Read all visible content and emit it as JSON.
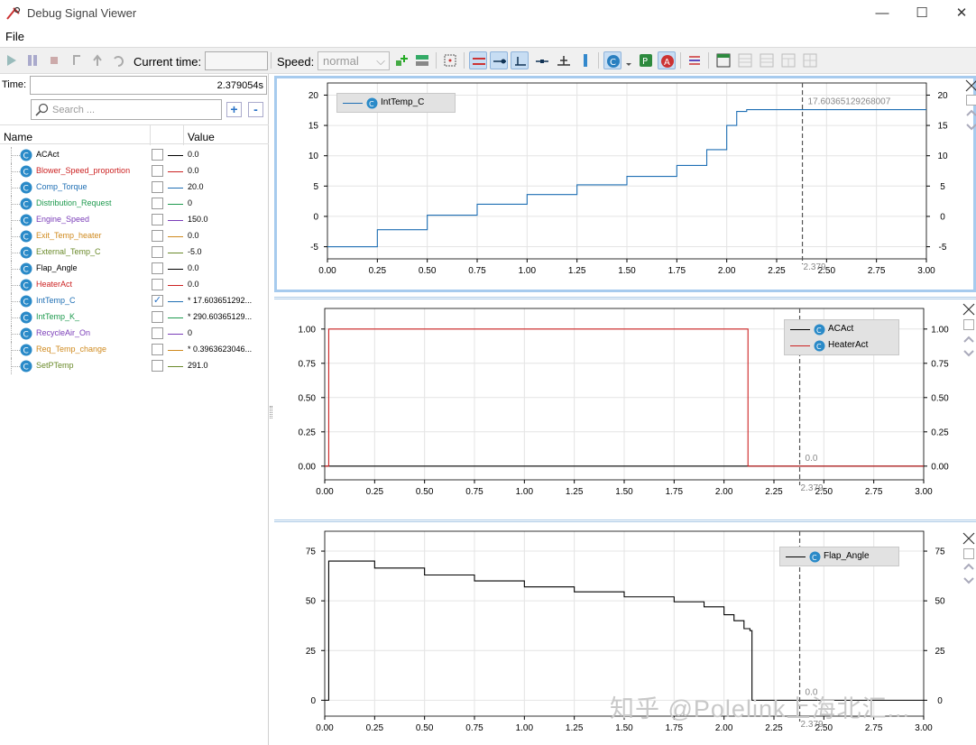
{
  "window": {
    "title": "Debug Signal Viewer",
    "minimize": "—",
    "maximize": "☐",
    "close": "✕"
  },
  "menu": {
    "file": "File"
  },
  "toolbar": {
    "current_time_label": "Current time:",
    "current_time_value": "",
    "speed_label": "Speed:",
    "speed_value": "normal"
  },
  "panel": {
    "time_label": "Time:",
    "time_value": "2.379054s",
    "search_placeholder": "Search ...",
    "add": "+",
    "remove": "-",
    "col_name": "Name",
    "col_value": "Value",
    "signals": [
      {
        "name": "ACAct",
        "value": "0.0",
        "color": "#000000",
        "checked": ""
      },
      {
        "name": "Blower_Speed_proportion",
        "value": "0.0",
        "color": "#cc2222",
        "checked": ""
      },
      {
        "name": "Comp_Torque",
        "value": "20.0",
        "color": "#1f6fb4",
        "checked": ""
      },
      {
        "name": "Distribution_Request",
        "value": "0",
        "color": "#1e9a4e",
        "checked": ""
      },
      {
        "name": "Engine_Speed",
        "value": "150.0",
        "color": "#7a3db8",
        "checked": ""
      },
      {
        "name": "Exit_Temp_heater",
        "value": "0.0",
        "color": "#d08a1e",
        "checked": ""
      },
      {
        "name": "External_Temp_C",
        "value": "-5.0",
        "color": "#6a8a2a",
        "checked": ""
      },
      {
        "name": "Flap_Angle",
        "value": "0.0",
        "color": "#000000",
        "checked": ""
      },
      {
        "name": "HeaterAct",
        "value": "0.0",
        "color": "#cc2222",
        "checked": ""
      },
      {
        "name": "IntTemp_C",
        "value": "* 17.603651292...",
        "color": "#1f6fb4",
        "checked": "✓"
      },
      {
        "name": "IntTemp_K_",
        "value": "* 290.60365129...",
        "color": "#1e9a4e",
        "checked": ""
      },
      {
        "name": "RecycleAir_On",
        "value": "0",
        "color": "#7a3db8",
        "checked": ""
      },
      {
        "name": "Req_Temp_change",
        "value": "* 0.3963623046...",
        "color": "#d08a1e",
        "checked": ""
      },
      {
        "name": "SetPTemp",
        "value": "291.0",
        "color": "#6a8a2a",
        "checked": ""
      }
    ]
  },
  "plots": {
    "cursor_time": 2.379,
    "cursor_label": "2.379",
    "x_ticks": [
      "0.00",
      "0.25",
      "0.50",
      "0.75",
      "1.00",
      "1.25",
      "1.50",
      "1.75",
      "2.00",
      "2.25",
      "2.50",
      "2.75",
      "3.00"
    ],
    "p1": {
      "legend": [
        "IntTemp_C"
      ],
      "cursor_value": "17.60365129268007",
      "y_ticks": [
        "20",
        "15",
        "10",
        "5",
        "0",
        "-5"
      ]
    },
    "p2": {
      "legend": [
        "ACAct",
        "HeaterAct"
      ],
      "cursor_value": "0.0",
      "y_ticks": [
        "1.00",
        "0.75",
        "0.50",
        "0.25",
        "0.00"
      ]
    },
    "p3": {
      "legend": [
        "Flap_Angle"
      ],
      "cursor_value": "0.0",
      "y_ticks": [
        "75",
        "50",
        "25",
        "0"
      ]
    }
  },
  "chart_data": [
    {
      "type": "line",
      "x": [
        0.0,
        0.25,
        0.5,
        0.75,
        1.0,
        1.25,
        1.5,
        1.75,
        1.9,
        2.0,
        2.05,
        2.1,
        2.2,
        3.0
      ],
      "series": [
        {
          "name": "IntTemp_C",
          "values": [
            -5.0,
            -2.2,
            0.2,
            2.0,
            3.6,
            5.2,
            6.6,
            8.4,
            11.0,
            15.0,
            17.3,
            17.6,
            17.6,
            17.6
          ]
        }
      ],
      "ylim": [
        -7,
        22
      ],
      "xlim": [
        0,
        3
      ]
    },
    {
      "type": "line",
      "x": [
        0.0,
        0.02,
        2.12,
        3.0
      ],
      "series": [
        {
          "name": "ACAct",
          "values": [
            0,
            0,
            0,
            0
          ]
        },
        {
          "name": "HeaterAct",
          "values": [
            0,
            1,
            0,
            0
          ]
        }
      ],
      "ylim": [
        -0.1,
        1.15
      ],
      "xlim": [
        0,
        3
      ]
    },
    {
      "type": "line",
      "x": [
        0.0,
        0.02,
        0.25,
        0.5,
        0.75,
        1.0,
        1.25,
        1.5,
        1.75,
        1.9,
        2.0,
        2.05,
        2.1,
        2.13,
        2.14,
        3.0
      ],
      "series": [
        {
          "name": "Flap_Angle",
          "values": [
            0,
            70,
            66.5,
            63,
            60,
            57,
            54.5,
            52,
            49.5,
            47,
            43,
            40,
            36,
            35,
            0,
            0
          ]
        }
      ],
      "ylim": [
        -8,
        85
      ],
      "xlim": [
        0,
        3
      ]
    }
  ],
  "watermark": "知乎 @Polelink上海北汇..."
}
